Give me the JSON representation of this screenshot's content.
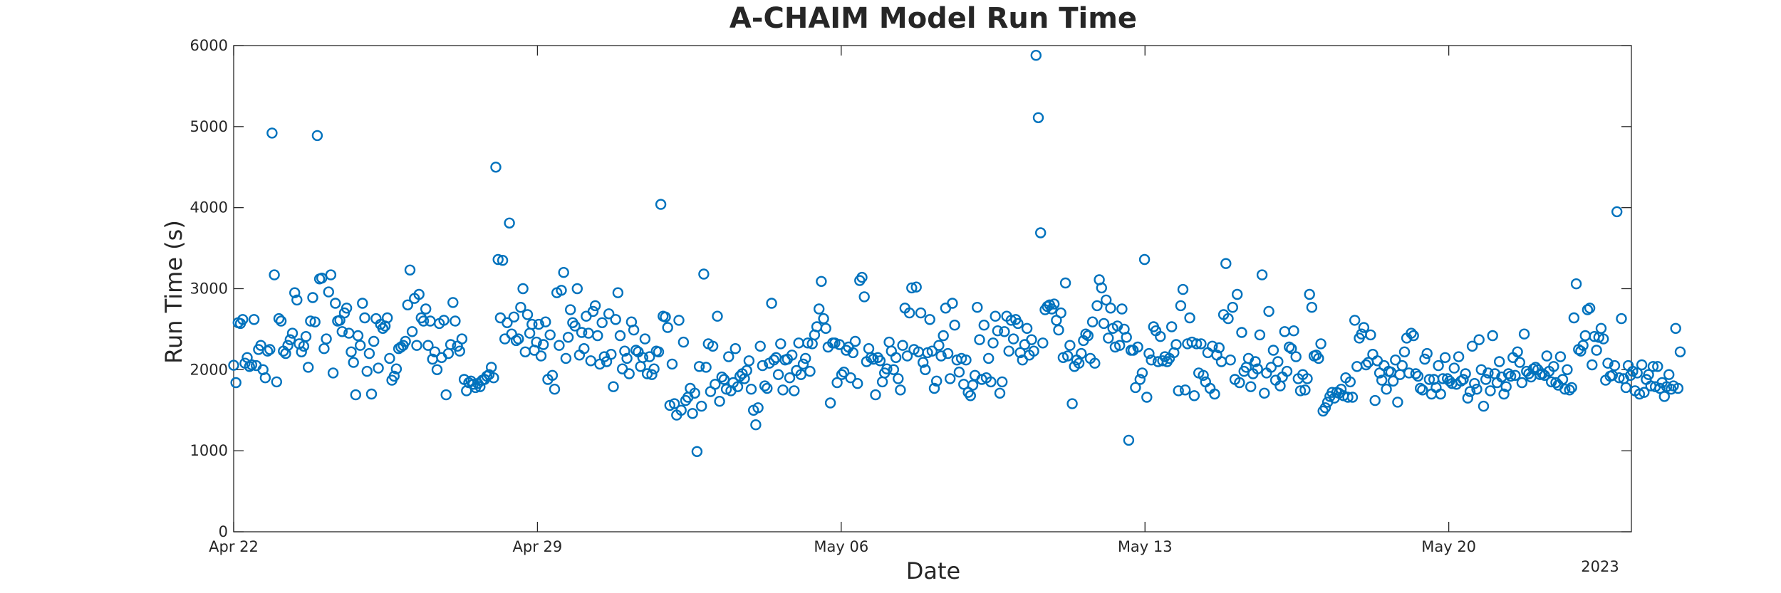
{
  "chart_data": {
    "type": "scatter",
    "title": "A-CHAIM Model Run Time",
    "xlabel": "Date",
    "ylabel": "Run Time (s)",
    "x_axis": {
      "kind": "date",
      "start": "2023-04-22",
      "end": "2023-05-24T05:00",
      "ticks": [
        {
          "date": "2023-04-22",
          "label": "Apr 22"
        },
        {
          "date": "2023-04-29",
          "label": "Apr 29"
        },
        {
          "date": "2023-05-06",
          "label": "May 06"
        },
        {
          "date": "2023-05-13",
          "label": "May 13"
        },
        {
          "date": "2023-05-20",
          "label": "May 20"
        }
      ],
      "year_label": "2023"
    },
    "y_axis": {
      "ylim": [
        0,
        6000
      ],
      "ticks": [
        0,
        1000,
        2000,
        3000,
        4000,
        5000,
        6000
      ]
    },
    "grid": false,
    "marker": "open-circle",
    "marker_color": "#0072BD",
    "series_y": [
      2055,
      1840,
      2580,
      2570,
      2620,
      2080,
      2150,
      2040,
      2060,
      2620,
      2050,
      2250,
      2300,
      2000,
      1900,
      2230,
      2250,
      4920,
      3170,
      1850,
      2630,
      2600,
      2230,
      2200,
      2300,
      2370,
      2450,
      2950,
      2860,
      2320,
      2220,
      2290,
      2410,
      2030,
      2600,
      2890,
      2590,
      4890,
      3120,
      3130,
      2260,
      2380,
      2960,
      3170,
      1960,
      2820,
      2600,
      2610,
      2470,
      2700,
      2760,
      2450,
      2220,
      2090,
      1690,
      2420,
      2300,
      2820,
      2640,
      1980,
      2200,
      1700,
      2350,
      2630,
      2020,
      2560,
      2510,
      2540,
      2640,
      2140,
      1870,
      1920,
      2010,
      2260,
      2280,
      2300,
      2350,
      2800,
      3230,
      2470,
      2880,
      2300,
      2930,
      2640,
      2600,
      2750,
      2300,
      2600,
      2130,
      2220,
      2000,
      2570,
      2150,
      2610,
      1690,
      2200,
      2310,
      2830,
      2600,
      2290,
      2230,
      2380,
      1880,
      1740,
      1840,
      1860,
      1820,
      1780,
      1830,
      1790,
      1870,
      1880,
      1920,
      1940,
      2030,
      1900,
      4500,
      3360,
      2640,
      3350,
      2380,
      2580,
      3810,
      2440,
      2650,
      2360,
      2380,
      2770,
      3000,
      2220,
      2680,
      2450,
      2560,
      2240,
      2340,
      2560,
      2170,
      2310,
      2590,
      1880,
      2430,
      1930,
      1760,
      2950,
      2300,
      2980,
      3200,
      2140,
      2400,
      2740,
      2580,
      2540,
      3000,
      2180,
      2460,
      2260,
      2660,
      2450,
      2110,
      2720,
      2790,
      2420,
      2070,
      2580,
      2160,
      2100,
      2690,
      2190,
      1790,
      2620,
      2950,
      2420,
      2010,
      2230,
      2140,
      1950,
      2590,
      2490,
      2240,
      2220,
      2040,
      2150,
      2380,
      1950,
      2160,
      1940,
      2010,
      2230,
      2220,
      4040,
      2660,
      2650,
      2520,
      1560,
      2070,
      1580,
      1440,
      2610,
      1500,
      2340,
      1620,
      1660,
      1770,
      1460,
      1710,
      990,
      2040,
      1550,
      3180,
      2030,
      2320,
      1730,
      2290,
      1820,
      2660,
      1610,
      1910,
      1880,
      1760,
      2160,
      1740,
      1840,
      2260,
      1790,
      1920,
      1950,
      1890,
      1990,
      2110,
      1760,
      1500,
      1320,
      1530,
      2290,
      2050,
      1800,
      1770,
      2080,
      2820,
      2120,
      2150,
      1940,
      2320,
      1750,
      2120,
      2130,
      1900,
      2180,
      1740,
      1990,
      2330,
      1940,
      2070,
      2140,
      2330,
      1980,
      2320,
      2430,
      2530,
      2750,
      3090,
      2630,
      2510,
      2280,
      1590,
      2330,
      2330,
      1840,
      2310,
      1940,
      1970,
      2240,
      2280,
      1900,
      2210,
      2350,
      1830,
      3100,
      3140,
      2900,
      2100,
      2260,
      2150,
      2130,
      1690,
      2150,
      2110,
      1850,
      1960,
      2010,
      2340,
      2230,
      2000,
      2150,
      1890,
      1750,
      2300,
      2760,
      2170,
      2700,
      3010,
      2250,
      3020,
      2220,
      2700,
      2090,
      2000,
      2210,
      2620,
      2230,
      1770,
      1860,
      2300,
      2170,
      2420,
      2760,
      2200,
      1890,
      2820,
      2550,
      2120,
      1970,
      2140,
      1820,
      2120,
      1720,
      1680,
      1810,
      1930,
      2770,
      2370,
      1880,
      2550,
      1900,
      2140,
      1850,
      2330,
      2660,
      2480,
      1710,
      1850,
      2470,
      2660,
      2230,
      2610,
      2380,
      2620,
      2570,
      2210,
      2120,
      2310,
      2510,
      2180,
      2370,
      2230,
      5880,
      5110,
      3690,
      2330,
      2740,
      2780,
      2800,
      2750,
      2810,
      2610,
      2490,
      2700,
      2150,
      3070,
      2170,
      2300,
      1580,
      2040,
      2120,
      2080,
      2200,
      2360,
      2440,
      2420,
      2140,
      2590,
      2080,
      2790,
      3110,
      3010,
      2570,
      2860,
      2390,
      2760,
      2510,
      2280,
      2540,
      2300,
      2750,
      2500,
      2400,
      1130,
      2240,
      2240,
      1780,
      2280,
      1880,
      1960,
      3360,
      1660,
      2200,
      2120,
      2530,
      2480,
      2100,
      2410,
      2110,
      2160,
      2100,
      2140,
      2530,
      2210,
      2310,
      1740,
      2790,
      2990,
      1750,
      2320,
      2640,
      2340,
      1680,
      2320,
      1960,
      2320,
      1930,
      1850,
      2210,
      1770,
      2290,
      1700,
      2180,
      2270,
      2100,
      2680,
      3310,
      2630,
      2120,
      2770,
      1880,
      2930,
      1840,
      2460,
      1980,
      2030,
      2140,
      1790,
      1950,
      2100,
      2010,
      2430,
      3170,
      1710,
      1960,
      2720,
      2030,
      2240,
      1870,
      2100,
      1800,
      1910,
      2470,
      1980,
      2280,
      2260,
      2480,
      2160,
      1890,
      1740,
      1940,
      1750,
      1890,
      2930,
      2770,
      2170,
      2180,
      2140,
      2320,
      1490,
      1530,
      1600,
      1670,
      1720,
      1650,
      1720,
      1710,
      1760,
      1680,
      1900,
      1660,
      1850,
      1660,
      2610,
      2040,
      2390,
      2440,
      2520,
      2060,
      2090,
      2430,
      2190,
      1620,
      2110,
      1960,
      1870,
      2050,
      1760,
      1980,
      1970,
      1860,
      2120,
      1600,
      1940,
      2050,
      2220,
      2390,
      1960,
      2450,
      2420,
      1950,
      1920,
      1770,
      1750,
      2130,
      2200,
      1880,
      1700,
      1880,
      1780,
      2050,
      1700,
      1890,
      2150,
      1890,
      1860,
      1830,
      2020,
      1820,
      2160,
      1860,
      1880,
      1950,
      1650,
      1730,
      2290,
      1830,
      1760,
      2370,
      2000,
      1550,
      1880,
      1960,
      1740,
      2420,
      1950,
      1840,
      2100,
      1910,
      1700,
      1790,
      1950,
      1920,
      2150,
      1930,
      2220,
      2090,
      1840,
      2440,
      1980,
      1950,
      1910,
      2010,
      2030,
      2000,
      1940,
      1950,
      1930,
      2170,
      1980,
      1850,
      2040,
      1840,
      1810,
      2160,
      1880,
      1760,
      2000,
      1750,
      1780,
      2640,
      3060,
      2250,
      2230,
      2300,
      2420,
      2740,
      2760,
      2060,
      2410,
      2240,
      2400,
      2510,
      2380,
      1870,
      2080,
      1920,
      1930,
      2050,
      3950,
      1900,
      2630,
      1890,
      1780,
      2050,
      1930,
      1980,
      1740,
      1960,
      1700,
      2060,
      1720,
      1880,
      1940,
      1800,
      2040,
      1790,
      2040,
      1770,
      1840,
      1670,
      1790,
      1940,
      1760,
      1800,
      2510,
      1770,
      2220
    ]
  }
}
